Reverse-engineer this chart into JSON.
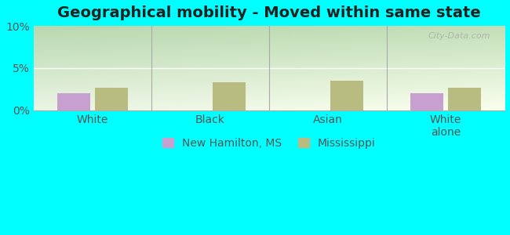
{
  "title": "Geographical mobility - Moved within same state",
  "categories": [
    "White",
    "Black",
    "Asian",
    "White\nalone"
  ],
  "new_hamilton_values": [
    2.0,
    0.0,
    0.0,
    2.0
  ],
  "mississippi_values": [
    2.7,
    3.3,
    3.5,
    2.7
  ],
  "new_hamilton_color": "#c8a0d0",
  "mississippi_color": "#b8bc80",
  "ylim": [
    0,
    10
  ],
  "yticks": [
    0,
    5,
    10
  ],
  "ytick_labels": [
    "0%",
    "5%",
    "10%"
  ],
  "bg_color_topleft": "#b8d8b0",
  "bg_color_topright": "#e8f0e0",
  "bg_color_bottomleft": "#e0ecd8",
  "bg_color_bottomright": "#f5f8f0",
  "outer_background": "#00ffff",
  "bar_width": 0.28,
  "title_fontsize": 14,
  "tick_fontsize": 10,
  "legend_fontsize": 10
}
